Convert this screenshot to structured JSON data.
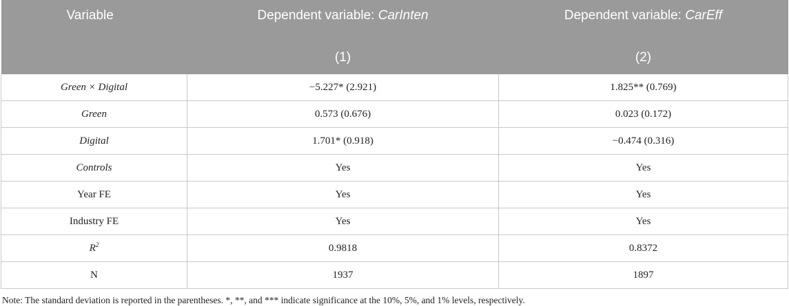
{
  "header": {
    "variable_label": "Variable",
    "dep1_prefix": "Dependent variable: ",
    "dep1_var": "CarInten",
    "dep2_prefix": "Dependent variable: ",
    "dep2_var": "CarEff",
    "col1": "(1)",
    "col2": "(2)"
  },
  "rows": [
    {
      "label": "Green × Digital",
      "italic": true,
      "c1": "−5.227* (2.921)",
      "c2": "1.825** (0.769)"
    },
    {
      "label": "Green",
      "italic": true,
      "c1": "0.573 (0.676)",
      "c2": "0.023 (0.172)"
    },
    {
      "label": "Digital",
      "italic": true,
      "c1": "1.701* (0.918)",
      "c2": "−0.474 (0.316)"
    },
    {
      "label": "Controls",
      "italic": true,
      "c1": "Yes",
      "c2": "Yes"
    },
    {
      "label": "Year FE",
      "italic": false,
      "c1": "Yes",
      "c2": "Yes"
    },
    {
      "label": "Industry FE",
      "italic": false,
      "c1": "Yes",
      "c2": "Yes"
    },
    {
      "label_base": "R",
      "label_sup": "2",
      "italic": true,
      "c1": "0.9818",
      "c2": "0.8372"
    },
    {
      "label": "N",
      "italic": false,
      "c1": "1937",
      "c2": "1897"
    }
  ],
  "note": "Note: The standard deviation is reported in the parentheses. *, **, and *** indicate significance at the 10%, 5%, and 1% levels, respectively."
}
